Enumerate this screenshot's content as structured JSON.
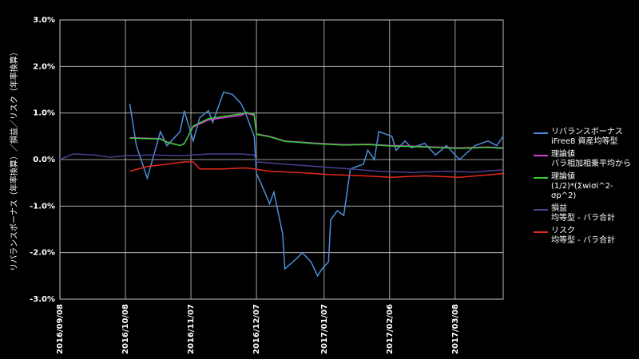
{
  "chart_data": {
    "type": "line",
    "y_label": "リバランスボーナス（年率換算）／損益／リスク（年率換算）",
    "xlim": [
      "2016/09/08",
      "2017/03/30"
    ],
    "xticks": [
      "2016/09/08",
      "2016/10/08",
      "2016/11/07",
      "2016/12/07",
      "2017/01/07",
      "2017/02/06",
      "2017/03/08"
    ],
    "ylim": [
      -3,
      3
    ],
    "yticks": [
      {
        "value": -3,
        "label": "-3.0%"
      },
      {
        "value": -2,
        "label": "-2.0%"
      },
      {
        "value": -1,
        "label": "-1.0%"
      },
      {
        "value": 0,
        "label": "0.0%"
      },
      {
        "value": 1,
        "label": "1.0%"
      },
      {
        "value": 2,
        "label": "2.0%"
      },
      {
        "value": 3,
        "label": "3.0%"
      }
    ],
    "grid": true,
    "series": [
      {
        "name": "リバランスボーナス\niFree8 資産均等型",
        "color": "#4a90d9",
        "x": [
          "2016/10/10",
          "2016/10/13",
          "2016/10/18",
          "2016/10/24",
          "2016/10/27",
          "2016/11/02",
          "2016/11/04",
          "2016/11/08",
          "2016/11/11",
          "2016/11/15",
          "2016/11/17",
          "2016/11/22",
          "2016/11/26",
          "2016/11/30",
          "2016/12/02",
          "2016/12/06",
          "2016/12/07",
          "2016/12/09",
          "2016/12/13",
          "2016/12/15",
          "2016/12/19",
          "2016/12/20",
          "2016/12/26",
          "2016/12/28",
          "2017/01/01",
          "2017/01/04",
          "2017/01/06",
          "2017/01/09",
          "2017/01/10",
          "2017/01/13",
          "2017/01/16",
          "2017/01/19",
          "2017/01/25",
          "2017/01/27",
          "2017/01/30",
          "2017/02/01",
          "2017/02/07",
          "2017/02/09",
          "2017/02/13",
          "2017/02/16",
          "2017/02/22",
          "2017/02/27",
          "2017/03/04",
          "2017/03/10",
          "2017/03/17",
          "2017/03/23",
          "2017/03/27",
          "2017/03/30"
        ],
        "values": [
          1.2,
          0.3,
          -0.4,
          0.6,
          0.3,
          0.6,
          1.05,
          0.4,
          0.9,
          1.05,
          0.8,
          1.45,
          1.4,
          1.2,
          1.0,
          0.5,
          -0.3,
          -0.5,
          -0.95,
          -0.7,
          -1.6,
          -2.35,
          -2.1,
          -2.0,
          -2.2,
          -2.5,
          -2.35,
          -2.2,
          -1.3,
          -1.1,
          -1.2,
          -0.2,
          -0.1,
          0.2,
          0.0,
          0.6,
          0.5,
          0.2,
          0.4,
          0.25,
          0.35,
          0.1,
          0.3,
          0.0,
          0.3,
          0.4,
          0.3,
          0.5
        ]
      },
      {
        "name": "理論値\nバラ相加相乗平均から",
        "color": "#d63fd6",
        "x": [
          "2016/10/10",
          "2016/10/24",
          "2016/10/27",
          "2016/11/02",
          "2016/11/04",
          "2016/11/08",
          "2016/11/15",
          "2016/11/22",
          "2016/11/30",
          "2016/12/02",
          "2016/12/06",
          "2016/12/07",
          "2016/12/13",
          "2016/12/20",
          "2017/01/04",
          "2017/01/16",
          "2017/01/27",
          "2017/02/07",
          "2017/02/22",
          "2017/03/10",
          "2017/03/23",
          "2017/03/30"
        ],
        "values": [
          0.47,
          0.45,
          0.38,
          0.3,
          0.35,
          0.7,
          0.85,
          0.9,
          0.95,
          1.0,
          0.95,
          0.55,
          0.5,
          0.4,
          0.35,
          0.32,
          0.33,
          0.3,
          0.28,
          0.25,
          0.27,
          0.25
        ]
      },
      {
        "name": "理論値\n(1/2)*(Σwiσi^2-σp^2)",
        "color": "#33cc33",
        "x": [
          "2016/10/10",
          "2016/10/24",
          "2016/10/27",
          "2016/11/02",
          "2016/11/04",
          "2016/11/08",
          "2016/11/15",
          "2016/11/22",
          "2016/11/30",
          "2016/12/02",
          "2016/12/06",
          "2016/12/07",
          "2016/12/13",
          "2016/12/20",
          "2017/01/04",
          "2017/01/16",
          "2017/01/27",
          "2017/02/07",
          "2017/02/22",
          "2017/03/10",
          "2017/03/23",
          "2017/03/30"
        ],
        "values": [
          0.46,
          0.44,
          0.37,
          0.3,
          0.34,
          0.72,
          0.88,
          0.93,
          0.98,
          1.02,
          0.97,
          0.54,
          0.49,
          0.39,
          0.34,
          0.31,
          0.32,
          0.29,
          0.27,
          0.24,
          0.26,
          0.24
        ]
      },
      {
        "name": "損益\n均等型 - バラ合計",
        "color": "#4b3f8f",
        "x": [
          "2016/09/08",
          "2016/09/14",
          "2016/09/24",
          "2016/10/01",
          "2016/10/08",
          "2016/10/20",
          "2016/11/02",
          "2016/11/15",
          "2016/11/30",
          "2016/12/06",
          "2016/12/07",
          "2016/12/20",
          "2017/01/04",
          "2017/01/19",
          "2017/02/01",
          "2017/02/16",
          "2017/03/03",
          "2017/03/17",
          "2017/03/30"
        ],
        "values": [
          0.0,
          0.12,
          0.1,
          0.05,
          0.08,
          0.1,
          0.08,
          0.12,
          0.12,
          0.1,
          -0.05,
          -0.1,
          -0.15,
          -0.2,
          -0.25,
          -0.28,
          -0.25,
          -0.27,
          -0.22
        ]
      },
      {
        "name": "リスク\n均等型 - バラ合計",
        "color": "#e8281e",
        "x": [
          "2016/10/10",
          "2016/10/18",
          "2016/10/27",
          "2016/11/04",
          "2016/11/08",
          "2016/11/11",
          "2016/11/22",
          "2016/12/02",
          "2016/12/06",
          "2016/12/13",
          "2016/12/26",
          "2017/01/09",
          "2017/01/25",
          "2017/02/07",
          "2017/02/22",
          "2017/03/10",
          "2017/03/23",
          "2017/03/30"
        ],
        "values": [
          -0.25,
          -0.15,
          -0.1,
          -0.05,
          -0.05,
          -0.2,
          -0.2,
          -0.18,
          -0.2,
          -0.25,
          -0.28,
          -0.32,
          -0.35,
          -0.38,
          -0.35,
          -0.38,
          -0.33,
          -0.3
        ]
      }
    ]
  }
}
